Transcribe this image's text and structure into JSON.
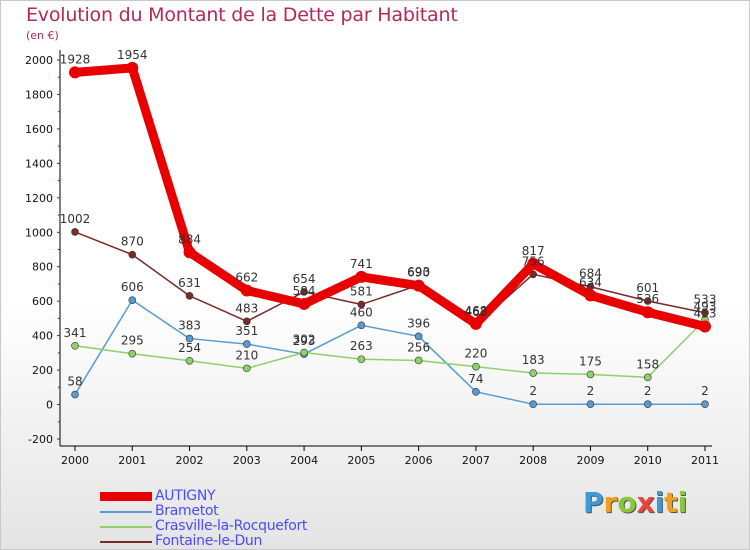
{
  "title": "Evolution du Montant de la Dette par Habitant",
  "subtitle": "(en €)",
  "logo": {
    "text": "Proxiti",
    "letters": [
      {
        "ch": "P",
        "color": "#3c9ad8"
      },
      {
        "ch": "r",
        "color": "#f0a020"
      },
      {
        "ch": "o",
        "color": "#8cc63f"
      },
      {
        "ch": "x",
        "color": "#e8463c"
      },
      {
        "ch": "i",
        "color": "#3c9ad8"
      },
      {
        "ch": "t",
        "color": "#f0a020"
      },
      {
        "ch": "i",
        "color": "#8cc63f"
      }
    ]
  },
  "chart_data": {
    "type": "line",
    "title": "Evolution du Montant de la Dette par Habitant",
    "subtitle": "(en €)",
    "x": [
      2000,
      2001,
      2002,
      2003,
      2004,
      2005,
      2006,
      2007,
      2008,
      2009,
      2010,
      2011
    ],
    "ylim": [
      -200,
      2000
    ],
    "yticks": [
      -200,
      0,
      200,
      400,
      600,
      800,
      1000,
      1200,
      1400,
      1600,
      1800,
      2000
    ],
    "grid": false,
    "legend_position": "bottom-left",
    "series": [
      {
        "name": "AUTIGNY",
        "color": "#e80000",
        "values": [
          1928,
          1954,
          884,
          662,
          584,
          741,
          690,
          468,
          817,
          634,
          536,
          453
        ]
      },
      {
        "name": "Brametot",
        "color": "#5a9ad2",
        "values": [
          58,
          606,
          383,
          351,
          293,
          460,
          396,
          74,
          2,
          2,
          2,
          2
        ]
      },
      {
        "name": "Crasville-la-Rocquefort",
        "color": "#8ed06a",
        "values": [
          341,
          295,
          254,
          210,
          302,
          263,
          256,
          220,
          183,
          175,
          158,
          493
        ]
      },
      {
        "name": "Fontaine-le-Dun",
        "color": "#7a2a2a",
        "values": [
          1002,
          870,
          631,
          483,
          654,
          581,
          693,
          462,
          756,
          684,
          601,
          533
        ]
      }
    ]
  }
}
